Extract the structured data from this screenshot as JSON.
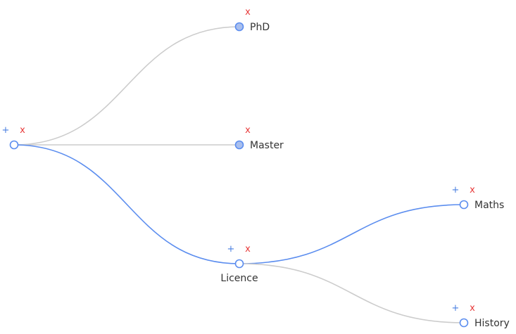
{
  "tree": {
    "colors": {
      "link_active": "#5b8def",
      "link_inactive": "#cccccc",
      "node_stroke": "#5b8def",
      "node_fill_open": "#ffffff",
      "node_fill_collapsed": "#a9bfee",
      "add_control": "#4a7fe0",
      "delete_control": "#e83b3b"
    },
    "controls": {
      "add": "+",
      "delete": "x"
    },
    "nodes": [
      {
        "id": "root",
        "label": "",
        "has_add": true,
        "has_delete": true,
        "state": "open"
      },
      {
        "id": "phd",
        "label": "PhD",
        "parent": "root",
        "has_add": false,
        "has_delete": true,
        "state": "collapsed"
      },
      {
        "id": "master",
        "label": "Master",
        "parent": "root",
        "has_add": false,
        "has_delete": true,
        "state": "collapsed"
      },
      {
        "id": "licence",
        "label": "Licence",
        "parent": "root",
        "has_add": true,
        "has_delete": true,
        "state": "open",
        "active_path": true
      },
      {
        "id": "maths",
        "label": "Maths",
        "parent": "licence",
        "has_add": true,
        "has_delete": true,
        "state": "open",
        "active_path": true
      },
      {
        "id": "history",
        "label": "History",
        "parent": "licence",
        "has_add": true,
        "has_delete": true,
        "state": "open"
      }
    ]
  }
}
